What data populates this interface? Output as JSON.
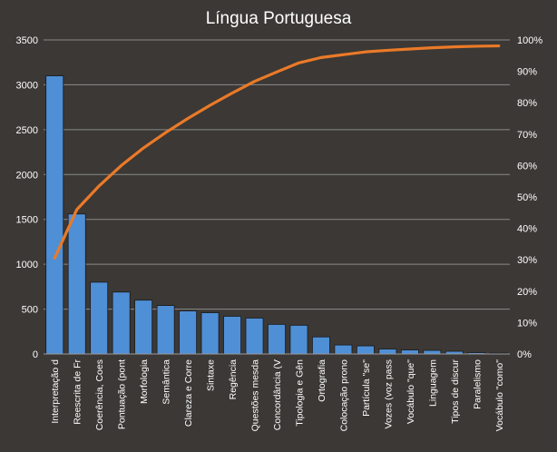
{
  "chart_data": {
    "type": "bar",
    "title": "Língua Portuguesa",
    "categories": [
      "Interpretação d",
      "Reescrita de Fr",
      "Coerência, Coes",
      "Pontuação (pont",
      "Morfologia",
      "Semântica",
      "Clareza e Corre",
      "Sintaxe",
      "Regência",
      "Questões mesda",
      "Concordância (V",
      "Tipologia e Gên",
      "Ortografia",
      "Colocação prono",
      "Partícula \"se\"",
      "Vozes (voz pass",
      "Vocábulo \"que\"",
      "Linguagem",
      "Tipos de discur",
      "Paralelismo",
      "Vocábulo \"como\""
    ],
    "series": [
      {
        "type": "bar",
        "values": [
          3100,
          1560,
          800,
          690,
          600,
          540,
          480,
          460,
          420,
          400,
          330,
          320,
          190,
          100,
          90,
          55,
          45,
          40,
          30,
          15,
          10
        ],
        "color": "#4f8fd6"
      },
      {
        "type": "line",
        "axis": "right",
        "values": [
          30.5,
          46,
          53.5,
          60,
          65.6,
          70.5,
          75,
          79.2,
          83.1,
          86.8,
          89.8,
          92.7,
          94.4,
          95.3,
          96.2,
          96.7,
          97.1,
          97.5,
          97.8,
          98,
          98.1
        ],
        "color": "#ea7a28"
      }
    ],
    "y_left": {
      "min": 0,
      "max": 3500,
      "ticks": [
        "0",
        "500",
        "1000",
        "1500",
        "2000",
        "2500",
        "3000",
        "3500"
      ]
    },
    "y_right": {
      "min": 0,
      "max": 100,
      "ticks": [
        "0%",
        "10%",
        "20%",
        "30%",
        "40%",
        "50%",
        "60%",
        "70%",
        "80%",
        "90%",
        "100%"
      ]
    },
    "grid": true,
    "legend": "none",
    "background": "#3b3835",
    "text_color": "#ffffff"
  }
}
